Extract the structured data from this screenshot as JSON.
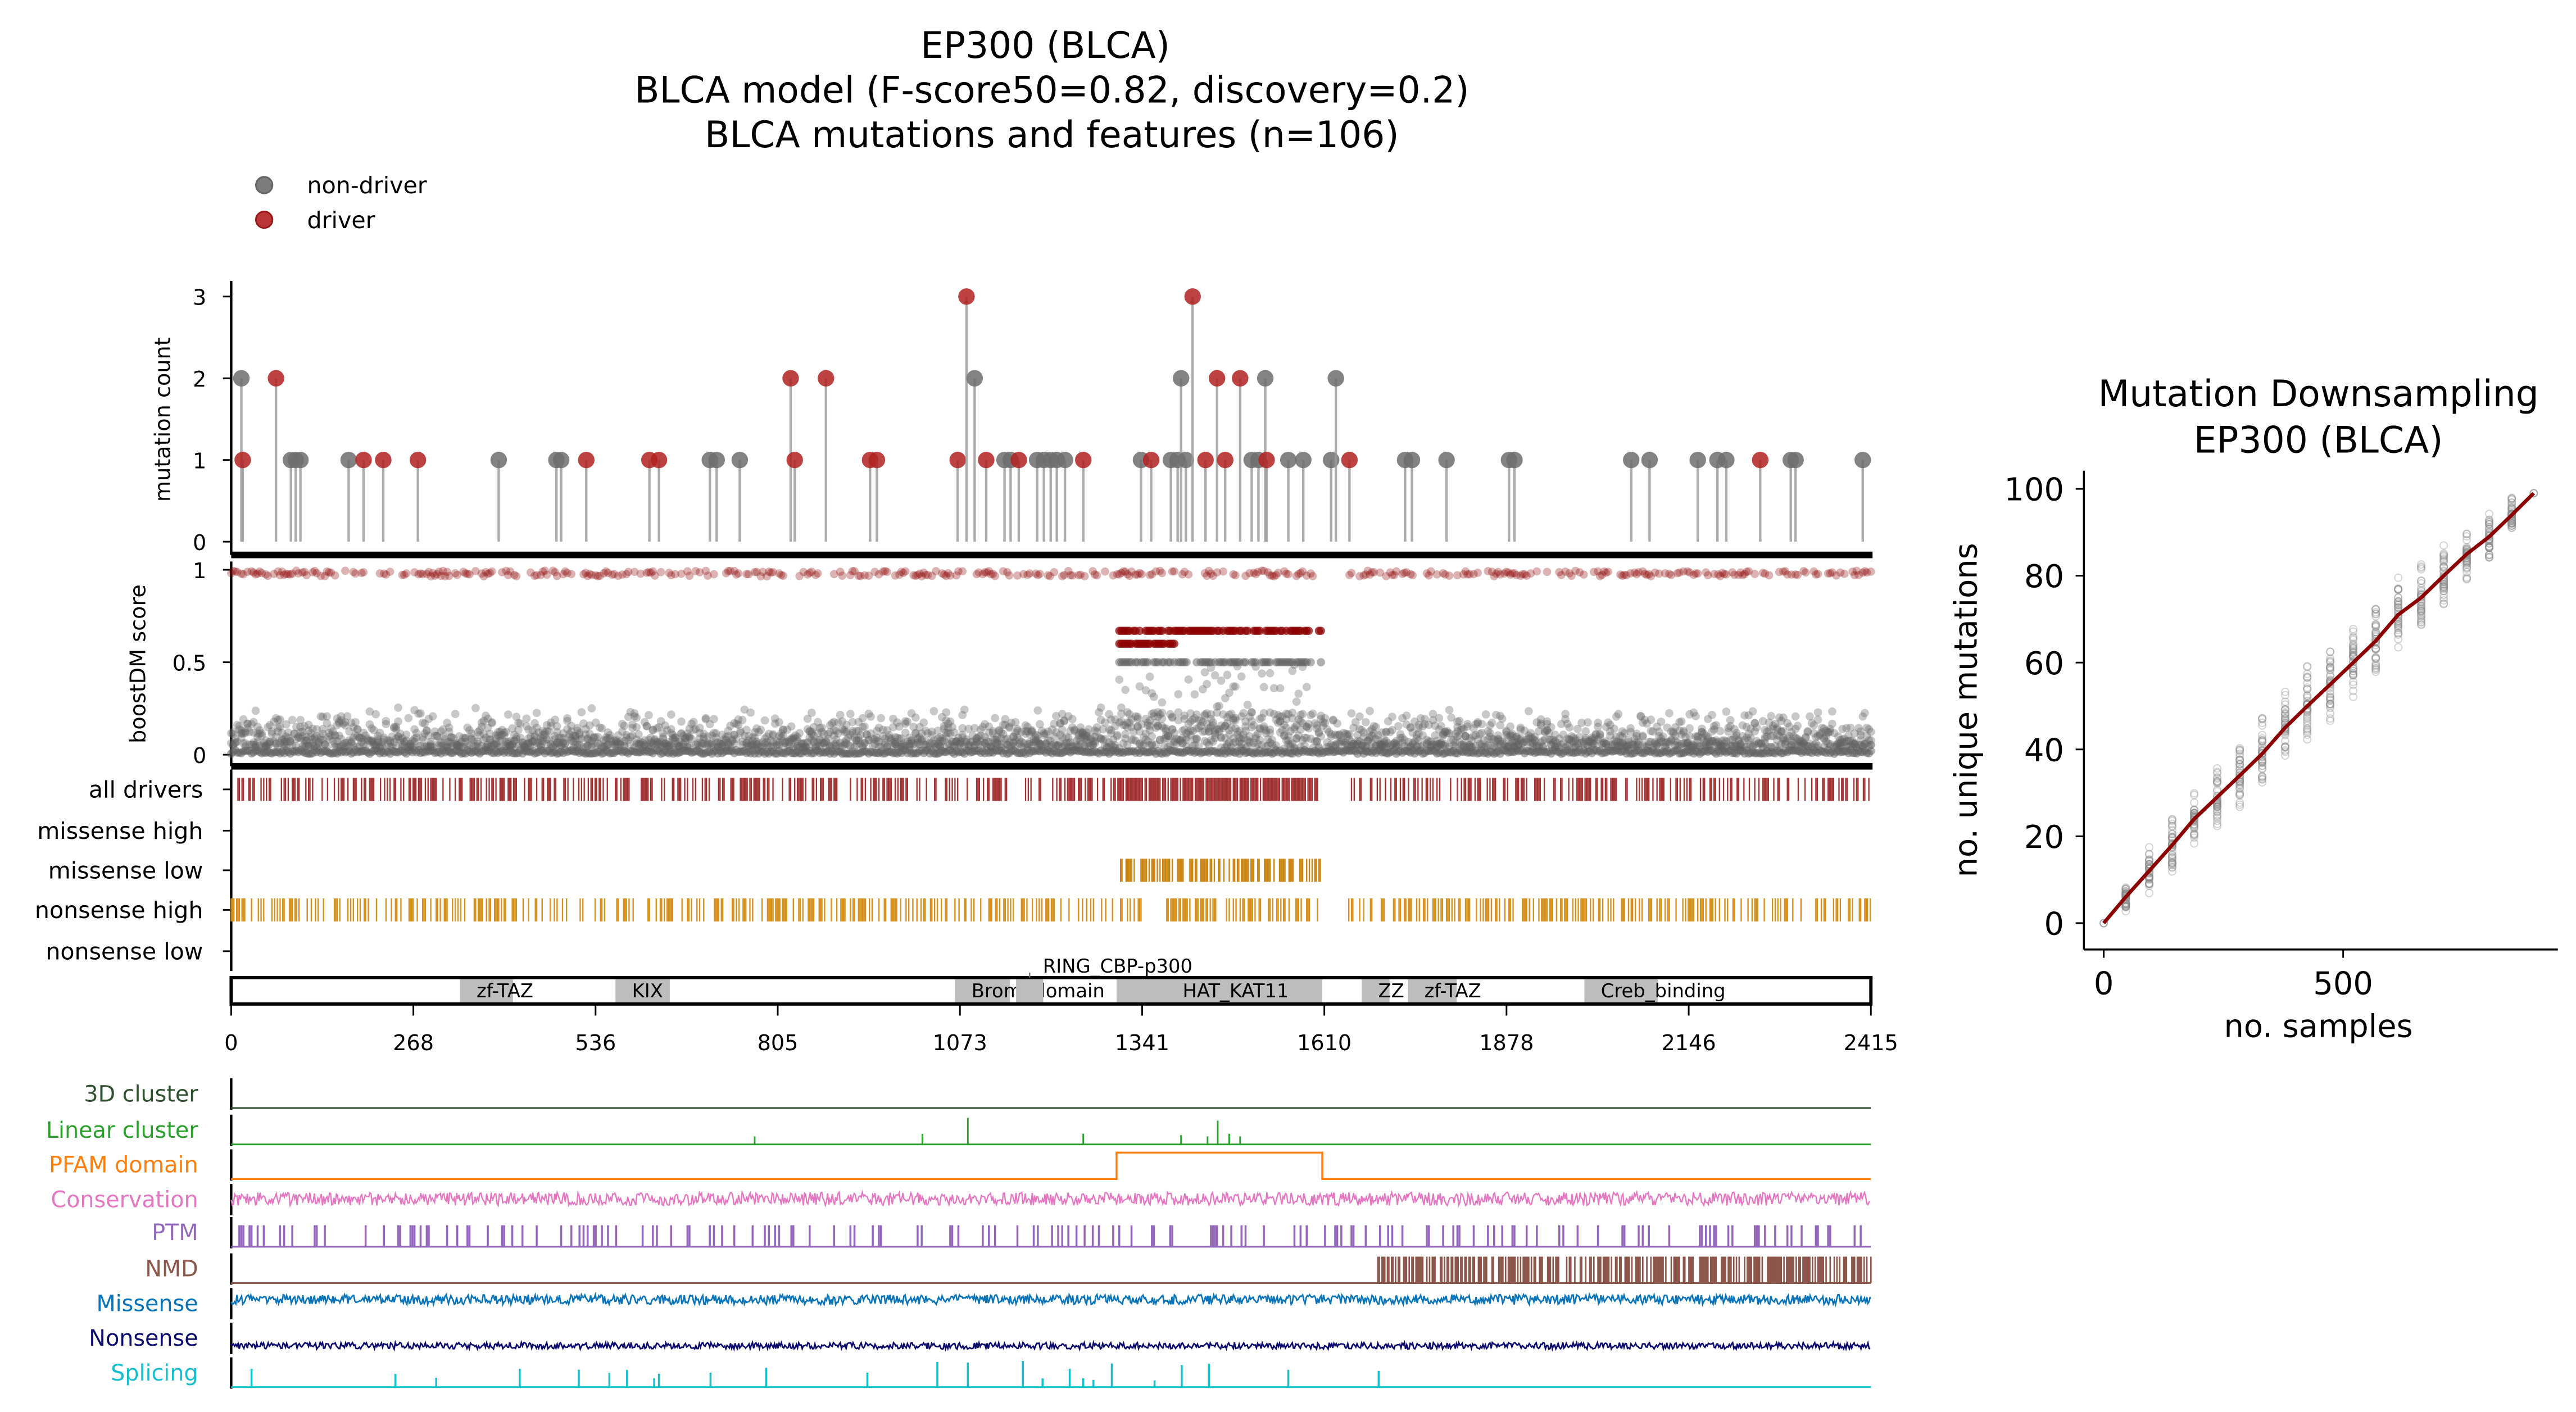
{
  "header": {
    "title_line1": "EP300 (BLCA)",
    "title_line2": "BLCA model (F-score50=0.82, discovery=0.2)",
    "title_line3": "BLCA mutations and features (n=106)"
  },
  "legend": {
    "items": [
      {
        "label": "non-driver",
        "color": "#6e6e6e"
      },
      {
        "label": "driver",
        "color": "#b22222"
      }
    ]
  },
  "colors": {
    "driver": "#b22222",
    "non_driver": "#6e6e6e",
    "dark_red": "#8b0000",
    "orange": "#d4901a",
    "domain": "#bdbdbd"
  },
  "chart_data": [
    {
      "type": "scatter",
      "name": "lollipop",
      "ylabel": "mutation count",
      "ylim": [
        0,
        3
      ],
      "yticks": [
        0,
        1,
        2,
        3
      ],
      "xlim": [
        0,
        2415
      ],
      "points": [
        [
          15,
          2,
          "n"
        ],
        [
          17,
          1,
          "d"
        ],
        [
          66,
          2,
          "d"
        ],
        [
          88,
          1,
          "n"
        ],
        [
          95,
          1,
          "n"
        ],
        [
          102,
          1,
          "n"
        ],
        [
          173,
          1,
          "n"
        ],
        [
          195,
          1,
          "d"
        ],
        [
          224,
          1,
          "d"
        ],
        [
          275,
          1,
          "d"
        ],
        [
          394,
          1,
          "n"
        ],
        [
          479,
          1,
          "n"
        ],
        [
          486,
          1,
          "n"
        ],
        [
          523,
          1,
          "d"
        ],
        [
          616,
          1,
          "d"
        ],
        [
          630,
          1,
          "d"
        ],
        [
          705,
          1,
          "n"
        ],
        [
          715,
          1,
          "n"
        ],
        [
          749,
          1,
          "n"
        ],
        [
          824,
          2,
          "d"
        ],
        [
          830,
          1,
          "d"
        ],
        [
          876,
          2,
          "d"
        ],
        [
          941,
          1,
          "d"
        ],
        [
          951,
          1,
          "d"
        ],
        [
          1070,
          1,
          "d"
        ],
        [
          1083,
          3,
          "d"
        ],
        [
          1095,
          2,
          "n"
        ],
        [
          1112,
          1,
          "d"
        ],
        [
          1139,
          1,
          "n"
        ],
        [
          1148,
          1,
          "n"
        ],
        [
          1160,
          1,
          "d"
        ],
        [
          1187,
          1,
          "n"
        ],
        [
          1197,
          1,
          "n"
        ],
        [
          1207,
          1,
          "n"
        ],
        [
          1216,
          1,
          "n"
        ],
        [
          1228,
          1,
          "n"
        ],
        [
          1255,
          1,
          "d"
        ],
        [
          1340,
          1,
          "n"
        ],
        [
          1355,
          1,
          "d"
        ],
        [
          1384,
          1,
          "n"
        ],
        [
          1394,
          1,
          "n"
        ],
        [
          1399,
          2,
          "n"
        ],
        [
          1406,
          1,
          "n"
        ],
        [
          1416,
          3,
          "d"
        ],
        [
          1435,
          1,
          "d"
        ],
        [
          1452,
          2,
          "d"
        ],
        [
          1464,
          1,
          "d"
        ],
        [
          1486,
          2,
          "d"
        ],
        [
          1503,
          1,
          "n"
        ],
        [
          1513,
          1,
          "n"
        ],
        [
          1523,
          2,
          "n"
        ],
        [
          1525,
          1,
          "d"
        ],
        [
          1557,
          1,
          "n"
        ],
        [
          1579,
          1,
          "n"
        ],
        [
          1620,
          1,
          "n"
        ],
        [
          1627,
          2,
          "n"
        ],
        [
          1647,
          1,
          "d"
        ],
        [
          1729,
          1,
          "n"
        ],
        [
          1739,
          1,
          "n"
        ],
        [
          1790,
          1,
          "n"
        ],
        [
          1882,
          1,
          "n"
        ],
        [
          1890,
          1,
          "n"
        ],
        [
          2062,
          1,
          "n"
        ],
        [
          2089,
          1,
          "n"
        ],
        [
          2160,
          1,
          "n"
        ],
        [
          2189,
          1,
          "n"
        ],
        [
          2202,
          1,
          "n"
        ],
        [
          2252,
          1,
          "d"
        ],
        [
          2297,
          1,
          "n"
        ],
        [
          2304,
          1,
          "n"
        ],
        [
          2403,
          1,
          "n"
        ]
      ]
    },
    {
      "type": "scatter",
      "name": "boostdm",
      "ylabel": "boostDM score",
      "ylim": [
        0,
        1
      ],
      "yticks": [
        "0",
        "0.5",
        "1"
      ],
      "high_region": [
        1304,
        1607
      ],
      "driver_gaps": [
        [
          1600,
          1645
        ]
      ]
    },
    {
      "type": "table",
      "name": "tracks",
      "rows": [
        "all drivers",
        "missense high",
        "missense low",
        "nonsense high",
        "nonsense low"
      ]
    },
    {
      "type": "bar",
      "name": "domains",
      "xticks": [
        "0",
        "268",
        "536",
        "805",
        "1073",
        "1341",
        "1610",
        "1878",
        "2146",
        "2415"
      ],
      "domains": [
        {
          "name": "zf-TAZ",
          "start": 337,
          "end": 415
        },
        {
          "name": "KIX",
          "start": 566,
          "end": 646
        },
        {
          "name": "Bromodomain",
          "start": 1066,
          "end": 1147
        },
        {
          "name": "RING_CBP-p300",
          "start": 1156,
          "end": 1196
        },
        {
          "name": "HAT_KAT11",
          "start": 1304,
          "end": 1607
        },
        {
          "name": "ZZ",
          "start": 1665,
          "end": 1706
        },
        {
          "name": "zf-TAZ",
          "start": 1733,
          "end": 1805
        },
        {
          "name": "Creb_binding",
          "start": 1993,
          "end": 2101
        }
      ]
    },
    {
      "type": "line",
      "name": "features",
      "tracks": [
        {
          "label": "3D cluster",
          "color": "#2f5130"
        },
        {
          "label": "Linear cluster",
          "color": "#2ca02c"
        },
        {
          "label": "PFAM domain",
          "color": "#ff7f0e"
        },
        {
          "label": "Conservation",
          "color": "#e377c2"
        },
        {
          "label": "PTM",
          "color": "#9467bd"
        },
        {
          "label": "NMD",
          "color": "#8c564b"
        },
        {
          "label": "Missense",
          "color": "#0a74b8"
        },
        {
          "label": "Nonsense",
          "color": "#0b0b6e"
        },
        {
          "label": "Splicing",
          "color": "#17becf"
        }
      ],
      "linear_cluster_peaks": [
        [
          771,
          0.3
        ],
        [
          1018,
          0.4
        ],
        [
          1085,
          1
        ],
        [
          1255,
          0.4
        ],
        [
          1399,
          0.35
        ],
        [
          1438,
          0.3
        ],
        [
          1453,
          0.9
        ],
        [
          1470,
          0.4
        ],
        [
          1486,
          0.3
        ]
      ],
      "nmd_start": 1689,
      "splicing_peaks": [
        30,
        242,
        302,
        425,
        512,
        557,
        583,
        623,
        630,
        706,
        788,
        937,
        1040,
        1085,
        1166,
        1195,
        1235,
        1255,
        1270,
        1297,
        1360,
        1400,
        1440,
        1557,
        1690
      ]
    },
    {
      "type": "scatter",
      "name": "downsampling",
      "title_line1": "Mutation Downsampling",
      "title_line2": "EP300 (BLCA)",
      "xlabel": "no. samples",
      "ylabel": "no. unique mutations",
      "xlim": [
        -50,
        950
      ],
      "ylim": [
        -6,
        104
      ],
      "xticks": [
        "0",
        "500"
      ],
      "yticks": [
        "0",
        "20",
        "40",
        "60",
        "80",
        "100"
      ],
      "line_color": "#8b0000",
      "columns": [
        {
          "x": 0,
          "mean": 0,
          "spread": 0
        },
        {
          "x": 46,
          "mean": 6,
          "spread": 4
        },
        {
          "x": 95,
          "mean": 12,
          "spread": 6
        },
        {
          "x": 143,
          "mean": 18,
          "spread": 7
        },
        {
          "x": 189,
          "mean": 24,
          "spread": 7
        },
        {
          "x": 237,
          "mean": 29,
          "spread": 8
        },
        {
          "x": 284,
          "mean": 34,
          "spread": 9
        },
        {
          "x": 331,
          "mean": 39,
          "spread": 9
        },
        {
          "x": 379,
          "mean": 45,
          "spread": 10
        },
        {
          "x": 425,
          "mean": 50,
          "spread": 10
        },
        {
          "x": 473,
          "mean": 55,
          "spread": 10
        },
        {
          "x": 521,
          "mean": 60,
          "spread": 10
        },
        {
          "x": 568,
          "mean": 65,
          "spread": 9
        },
        {
          "x": 615,
          "mean": 71,
          "spread": 9
        },
        {
          "x": 663,
          "mean": 75,
          "spread": 9
        },
        {
          "x": 710,
          "mean": 80,
          "spread": 8
        },
        {
          "x": 758,
          "mean": 85,
          "spread": 7
        },
        {
          "x": 805,
          "mean": 89,
          "spread": 6
        },
        {
          "x": 852,
          "mean": 94,
          "spread": 5
        },
        {
          "x": 898,
          "mean": 99,
          "spread": 0
        }
      ]
    }
  ]
}
